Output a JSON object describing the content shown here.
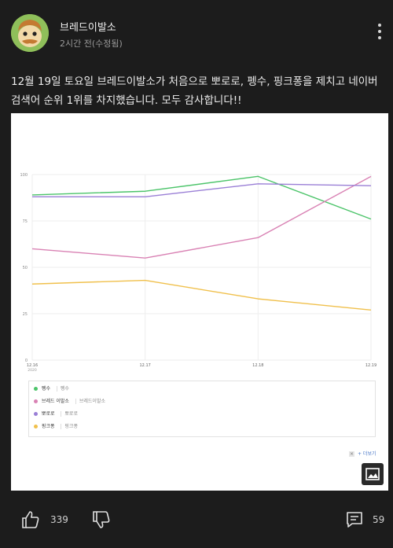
{
  "post": {
    "channel_name": "브레드이발소",
    "time": "2시간 전(수정됨)",
    "text": "12월 19일 토요일 브레드이발소가 처음으로 뽀로로, 펭수, 핑크퐁을 제치고 네이버 검색어 순위 1위를 차지했습니다. 모두 감사합니다!!"
  },
  "chart_data": {
    "type": "line",
    "categories": [
      "12.16",
      "12.17",
      "12.18",
      "12.19"
    ],
    "year_label": "2020",
    "ylim": [
      0,
      100
    ],
    "yticks": [
      "0",
      "25",
      "50",
      "75",
      "100"
    ],
    "series": [
      {
        "name": "펭수",
        "color": "#4cc46a",
        "values": [
          89,
          91,
          99,
          76
        ]
      },
      {
        "name": "브레드 이발소",
        "color": "#d982b4",
        "values": [
          60,
          55,
          66,
          99
        ]
      },
      {
        "name": "뽀로로",
        "color": "#9a7fd6",
        "values": [
          88,
          88,
          95,
          94
        ]
      },
      {
        "name": "핑크퐁",
        "color": "#f0c04c",
        "values": [
          41,
          43,
          33,
          27
        ]
      }
    ]
  },
  "legend": {
    "rows": [
      {
        "name": "펭수",
        "sub": "펭수",
        "color": "#4cc46a"
      },
      {
        "name": "브레드 이발소",
        "sub": "브레드이발소",
        "color": "#d982b4"
      },
      {
        "name": "뽀로로",
        "sub": "뽀로로",
        "color": "#9a7fd6"
      },
      {
        "name": "핑크퐁",
        "sub": "핑크퐁",
        "color": "#f0c04c"
      }
    ]
  },
  "more_link": "+ 더보기",
  "footer": {
    "like_count": "339",
    "comment_count": "59"
  }
}
